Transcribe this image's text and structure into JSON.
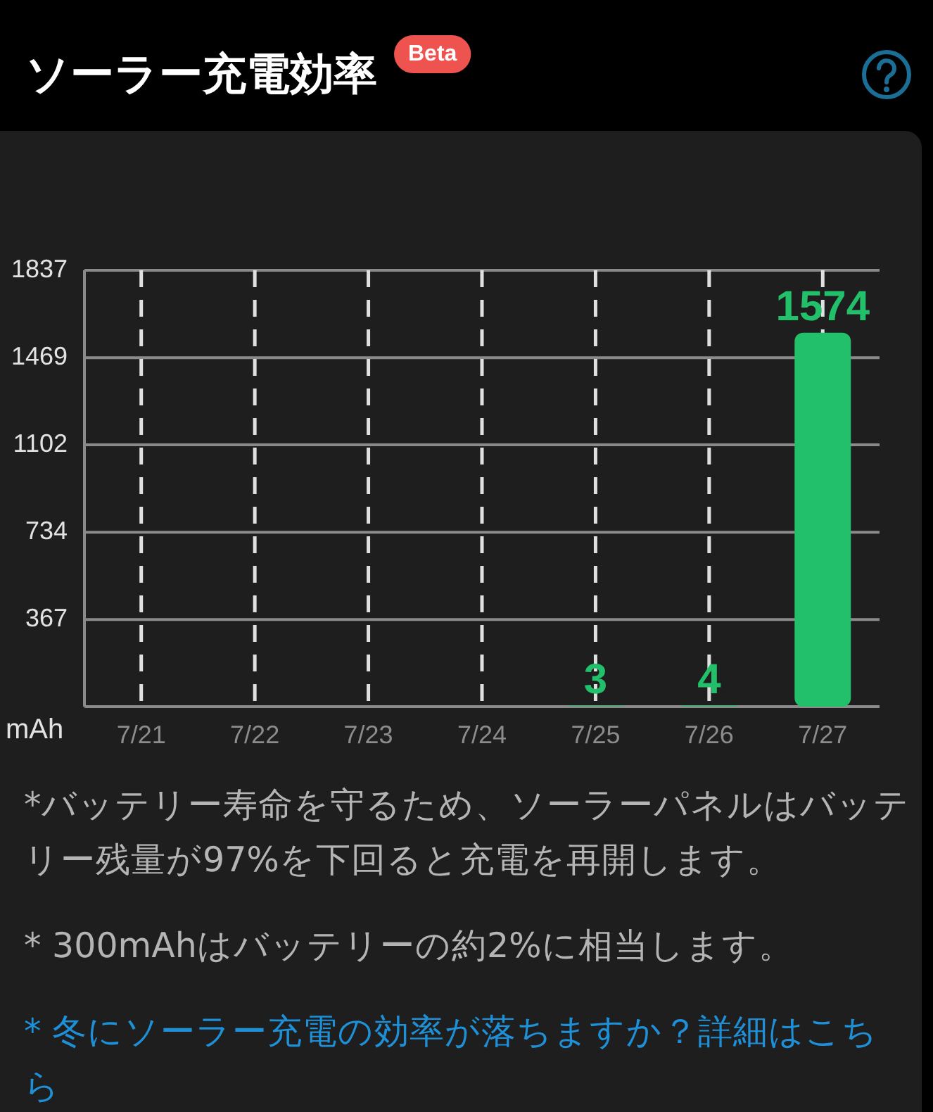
{
  "chart_data": {
    "type": "bar",
    "title": "ソーラー充電効率",
    "subtitle": "Beta",
    "ylabel": "mAh",
    "categories": [
      "7/21",
      "7/22",
      "7/23",
      "7/24",
      "7/25",
      "7/26",
      "7/27"
    ],
    "values": [
      null,
      null,
      null,
      null,
      3,
      4,
      1574
    ],
    "color": "#22c06a",
    "ylim": [
      0,
      1837
    ],
    "yticks": [
      367,
      734,
      1102,
      1469,
      1837
    ],
    "grid": true,
    "data_labels": true,
    "annotations": [
      "*バッテリー寿命を守るため、ソーラーパネルはバッテリー残量が97%を下回ると充電を再開します。",
      "* 300mAhはバッテリーの約2%に相当します。",
      "* 冬にソーラー充電の効率が落ちますか？詳細はこちら"
    ]
  }
}
